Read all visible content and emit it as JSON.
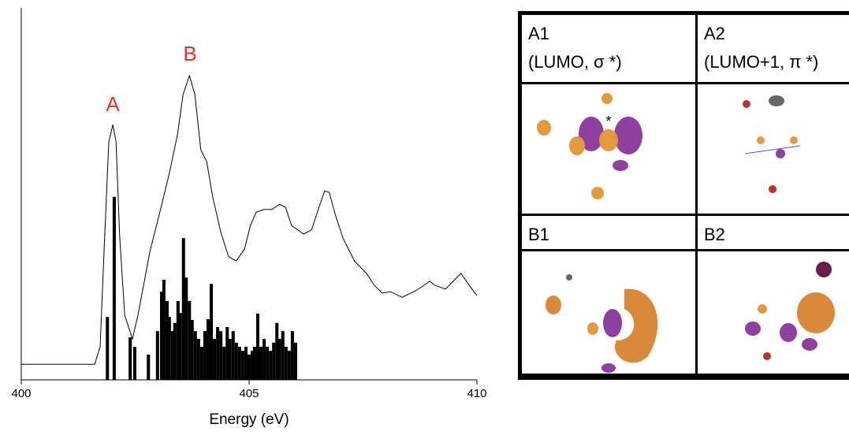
{
  "chart_data": {
    "type": "line",
    "xlabel": "Energy (eV)",
    "xlim": [
      400,
      410
    ],
    "xticks": [
      400,
      405,
      410
    ],
    "ylim": [
      0,
      100
    ],
    "color": "#000000",
    "annotations": [
      "A",
      "B"
    ],
    "annotation_color": "#e8312f",
    "x": [
      400.0,
      401.61,
      401.73,
      401.83,
      401.92,
      402.01,
      402.08,
      402.16,
      402.27,
      402.44,
      402.56,
      402.82,
      403.08,
      403.25,
      403.43,
      403.55,
      403.69,
      403.81,
      403.94,
      404.07,
      404.2,
      404.38,
      404.55,
      404.72,
      404.9,
      405.03,
      405.16,
      405.33,
      405.5,
      405.67,
      405.8,
      405.93,
      406.07,
      406.19,
      406.37,
      406.54,
      406.66,
      406.76,
      406.89,
      407.06,
      407.32,
      407.58,
      407.75,
      407.92,
      408.1,
      408.36,
      408.62,
      408.79,
      408.96,
      409.08,
      409.31,
      409.48,
      409.65,
      409.83,
      410.0
    ],
    "values": [
      4.2,
      4.2,
      8.9,
      38.6,
      64.0,
      68.6,
      64.0,
      38.6,
      17.4,
      11.0,
      17.4,
      34.3,
      47.0,
      55.5,
      66.1,
      76.7,
      81.8,
      76.7,
      61.9,
      58.7,
      49.2,
      39.6,
      33.1,
      32.0,
      35.2,
      41.5,
      45.1,
      45.8,
      45.8,
      47.2,
      46.4,
      41.5,
      40.3,
      39.2,
      40.3,
      46.6,
      50.8,
      50.4,
      44.5,
      38.1,
      31.8,
      28.6,
      25.4,
      23.3,
      23.7,
      22.2,
      23.7,
      25.0,
      26.5,
      25.4,
      24.4,
      26.5,
      28.6,
      25.4,
      22.7
    ],
    "sticks": {
      "width": 0.07,
      "x": [
        401.89,
        402.04,
        402.39,
        402.49,
        402.79,
        402.99,
        403.08,
        403.13,
        403.2,
        403.25,
        403.32,
        403.37,
        403.44,
        403.49,
        403.56,
        403.62,
        403.69,
        403.75,
        403.82,
        403.89,
        403.96,
        404.03,
        404.1,
        404.17,
        404.24,
        404.31,
        404.38,
        404.45,
        404.52,
        404.58,
        404.65,
        404.72,
        404.79,
        404.86,
        404.93,
        405.0,
        405.07,
        405.12,
        405.19,
        405.26,
        405.33,
        405.4,
        405.47,
        405.54,
        405.61,
        405.67,
        405.74,
        405.81,
        405.88,
        405.95,
        406.02
      ],
      "values": [
        16.9,
        49.2,
        11.4,
        8.9,
        6.8,
        13.1,
        23.7,
        26.9,
        21.2,
        16.9,
        13.1,
        15.3,
        21.2,
        18.0,
        38.1,
        27.5,
        21.2,
        16.1,
        13.1,
        11.0,
        8.9,
        13.1,
        16.3,
        25.8,
        11.0,
        14.2,
        13.1,
        8.9,
        14.2,
        11.0,
        13.1,
        10.0,
        8.9,
        7.8,
        8.9,
        6.8,
        7.8,
        8.9,
        17.8,
        8.9,
        11.0,
        8.9,
        7.8,
        10.0,
        15.3,
        11.0,
        13.1,
        8.9,
        7.8,
        13.1,
        10.0
      ]
    }
  },
  "panels": [
    {
      "label": "A1",
      "caption": "(LUMO, σ *)",
      "marker": "*"
    },
    {
      "label": "A2",
      "caption": "(LUMO+1, π *)"
    },
    {
      "label": "B1"
    },
    {
      "label": "B2"
    }
  ]
}
